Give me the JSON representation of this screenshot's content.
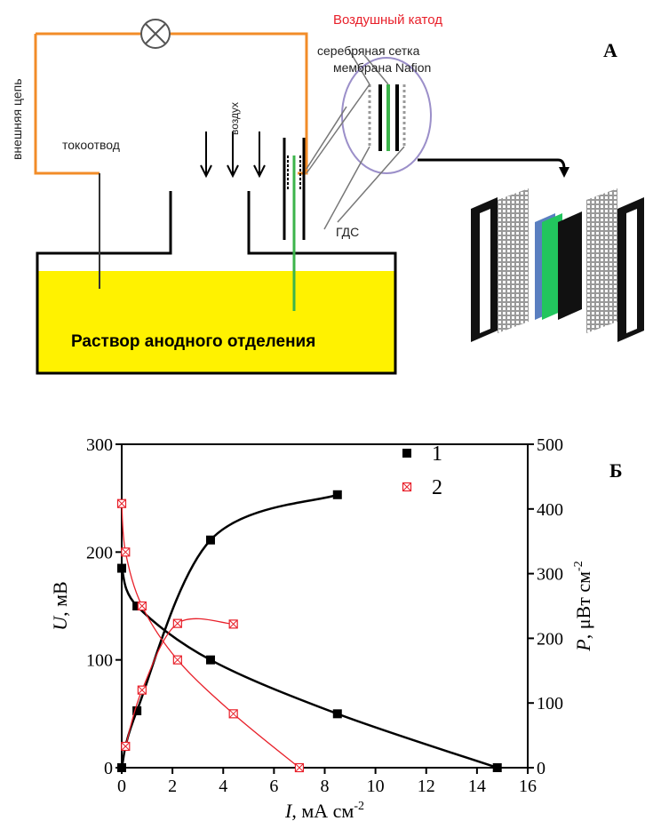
{
  "diagram": {
    "panel_label": "А",
    "cathode_title": "Воздушный катод",
    "silver_mesh": "серебряная сетка",
    "membrane": "мембрана Nafion",
    "external_circuit": "внешняя цепь",
    "current_collector": "токоотвод",
    "air": "воздух",
    "gdl": "ГДС",
    "solution": "Раствор анодного отделения"
  },
  "chart_data": {
    "type": "line",
    "panel_label": "Б",
    "xlabel": {
      "symbol": "I",
      "unit": ", мА см",
      "exponent": "-2"
    },
    "ylabel": {
      "symbol": "U",
      "unit": ", мВ"
    },
    "y2label": {
      "symbol": "P",
      "unit": ", μВт см",
      "exponent": "-2"
    },
    "xlim": [
      0,
      16
    ],
    "xticks": [
      0,
      2,
      4,
      6,
      8,
      10,
      12,
      14,
      16
    ],
    "ylim": [
      0,
      300
    ],
    "yticks": [
      0,
      100,
      200,
      300
    ],
    "y2lim": [
      0,
      500
    ],
    "y2ticks": [
      0,
      100,
      200,
      300,
      400,
      500
    ],
    "legend": "upper right",
    "series": [
      {
        "name": "1",
        "color": "#000000",
        "marker": "filled-square",
        "x": [
          0,
          0.6,
          3.5,
          8.5,
          14.8
        ],
        "values": [
          185,
          150,
          100,
          50,
          0
        ]
      },
      {
        "color": "#000000",
        "marker": "filled-square",
        "axis": "y2",
        "x": [
          0,
          0.6,
          3.5,
          8.5
        ],
        "values": [
          0,
          88,
          352,
          422
        ]
      },
      {
        "name": "2",
        "color": "#e8202a",
        "marker": "crossed-square",
        "x": [
          0,
          0.15,
          0.8,
          2.2,
          4.4,
          7
        ],
        "values": [
          245,
          200,
          150,
          100,
          50,
          0
        ]
      },
      {
        "color": "#e8202a",
        "marker": "crossed-square",
        "axis": "y2",
        "x": [
          0.15,
          0.8,
          2.2,
          4.4
        ],
        "values": [
          33,
          120,
          223,
          222
        ]
      }
    ]
  }
}
